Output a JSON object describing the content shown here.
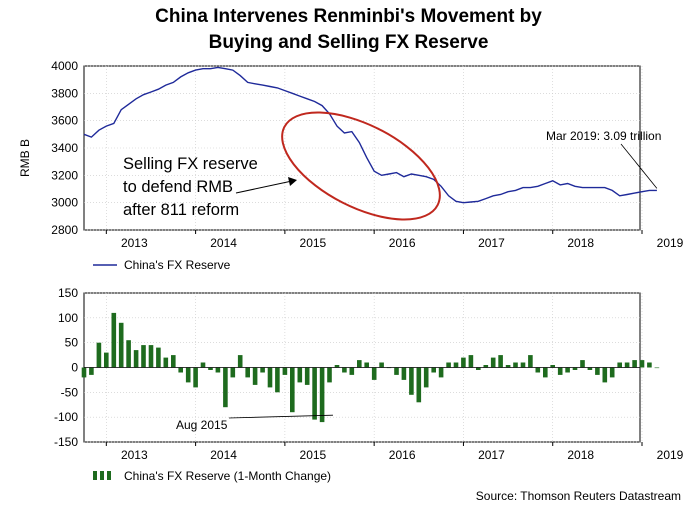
{
  "title": {
    "line1": "China Intervenes Renminbi's Movement by",
    "line2": "Buying and Selling FX Reserve"
  },
  "source": "Source: Thomson Reuters Datastream",
  "colors": {
    "line": "#1f2a9a",
    "bar": "#1e6b1e",
    "ellipse": "#c0281e",
    "grid": "#c8c8c8"
  },
  "chart_data": [
    {
      "type": "line",
      "ylabel": "RMB B",
      "ylim": [
        2800,
        4000
      ],
      "yticks": [
        2800,
        3000,
        3200,
        3400,
        3600,
        3800,
        4000
      ],
      "xticks": [
        "2013",
        "2014",
        "2015",
        "2016",
        "2017",
        "2018",
        "2019"
      ],
      "grid": true,
      "legend": "bottom-left",
      "series": [
        {
          "name": "China's FX Reserve",
          "x": [
            "2012-10",
            "2012-11",
            "2012-12",
            "2013-01",
            "2013-02",
            "2013-03",
            "2013-04",
            "2013-05",
            "2013-06",
            "2013-07",
            "2013-08",
            "2013-09",
            "2013-10",
            "2013-11",
            "2013-12",
            "2014-01",
            "2014-02",
            "2014-03",
            "2014-04",
            "2014-05",
            "2014-06",
            "2014-07",
            "2014-08",
            "2014-09",
            "2014-10",
            "2014-11",
            "2014-12",
            "2015-01",
            "2015-02",
            "2015-03",
            "2015-04",
            "2015-05",
            "2015-06",
            "2015-07",
            "2015-08",
            "2015-09",
            "2015-10",
            "2015-11",
            "2015-12",
            "2016-01",
            "2016-02",
            "2016-03",
            "2016-04",
            "2016-05",
            "2016-06",
            "2016-07",
            "2016-08",
            "2016-09",
            "2016-10",
            "2016-11",
            "2016-12",
            "2017-01",
            "2017-02",
            "2017-03",
            "2017-04",
            "2017-05",
            "2017-06",
            "2017-07",
            "2017-08",
            "2017-09",
            "2017-10",
            "2017-11",
            "2017-12",
            "2018-01",
            "2018-02",
            "2018-03",
            "2018-04",
            "2018-05",
            "2018-06",
            "2018-07",
            "2018-08",
            "2018-09",
            "2018-10",
            "2018-11",
            "2018-12",
            "2019-01",
            "2019-02",
            "2019-03"
          ],
          "values": [
            3500,
            3480,
            3530,
            3560,
            3580,
            3680,
            3720,
            3760,
            3790,
            3810,
            3830,
            3860,
            3880,
            3920,
            3950,
            3970,
            3980,
            3980,
            3990,
            3980,
            3970,
            3930,
            3880,
            3870,
            3860,
            3850,
            3840,
            3820,
            3800,
            3780,
            3760,
            3740,
            3710,
            3650,
            3560,
            3510,
            3520,
            3440,
            3330,
            3230,
            3200,
            3210,
            3220,
            3190,
            3210,
            3200,
            3190,
            3170,
            3120,
            3050,
            3010,
            3000,
            3005,
            3010,
            3030,
            3050,
            3060,
            3080,
            3090,
            3110,
            3110,
            3120,
            3140,
            3160,
            3130,
            3140,
            3120,
            3110,
            3110,
            3110,
            3110,
            3090,
            3050,
            3060,
            3070,
            3080,
            3090,
            3090
          ]
        }
      ],
      "annotations": [
        {
          "text_lines": [
            "Selling FX reserve",
            "to defend RMB",
            "after 811 reform"
          ]
        },
        {
          "text": "Mar 2019: 3.09 trillion"
        }
      ]
    },
    {
      "type": "bar",
      "ylim": [
        -150,
        150
      ],
      "yticks": [
        -150,
        -100,
        -50,
        0,
        50,
        100,
        150
      ],
      "xticks": [
        "2013",
        "2014",
        "2015",
        "2016",
        "2017",
        "2018",
        "2019"
      ],
      "grid": true,
      "legend": "bottom-left",
      "series": [
        {
          "name": "China's FX Reserve (1-Month Change)",
          "values": [
            -20,
            -15,
            50,
            30,
            110,
            90,
            55,
            35,
            45,
            45,
            40,
            20,
            25,
            -10,
            -30,
            -40,
            10,
            -5,
            -10,
            -80,
            -20,
            25,
            -20,
            -35,
            -10,
            -40,
            -50,
            -15,
            -90,
            -30,
            -35,
            -105,
            -110,
            -30,
            5,
            -10,
            -15,
            15,
            10,
            -25,
            10,
            0,
            -15,
            -25,
            -55,
            -70,
            -40,
            -10,
            -20,
            10,
            10,
            20,
            25,
            -5,
            5,
            20,
            25,
            5,
            10,
            10,
            25,
            -10,
            -20,
            5,
            -15,
            -10,
            -5,
            15,
            -5,
            -15,
            -30,
            -20,
            10,
            10,
            15,
            15,
            10,
            0
          ]
        }
      ],
      "annotations": [
        {
          "text": "Aug 2015"
        }
      ]
    }
  ]
}
